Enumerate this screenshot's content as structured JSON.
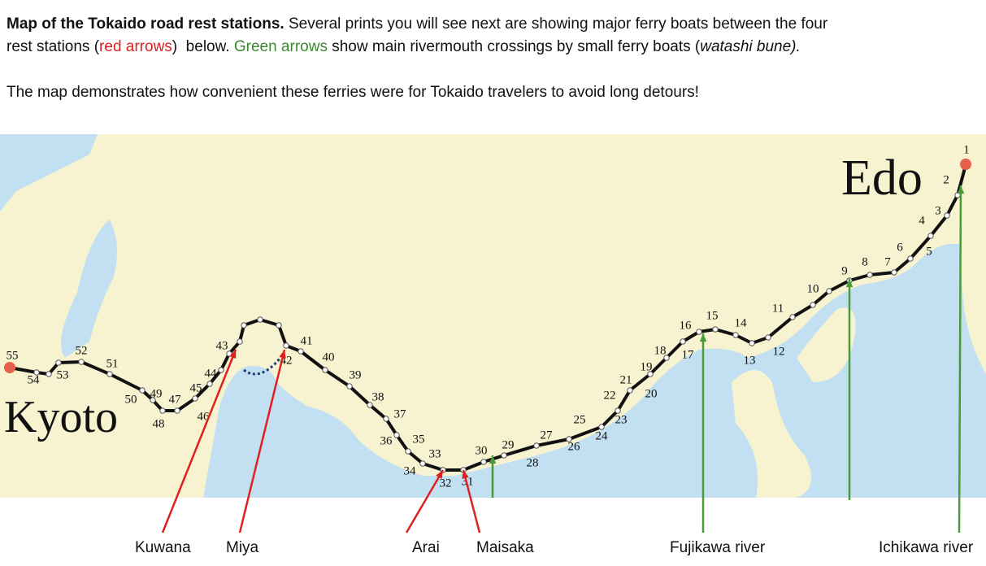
{
  "intro": {
    "title": "Map of the Tokaido road rest stations.",
    "text1": " Several prints you will see next are showing major ferry boats between the four",
    "text2": "rest stations (",
    "red": "red arrows",
    "text3": ")  below. ",
    "green": "Green arrows",
    "text4": " show main rivermouth crossings by small ferry boats (",
    "italic": "watashi bune)."
  },
  "note": "The map demonstrates how convenient these ferries were for Tokaido travelers to avoid long detours!",
  "map": {
    "edo": "Edo",
    "kyoto": "Kyoto",
    "stations": [
      "1",
      "2",
      "3",
      "4",
      "5",
      "6",
      "7",
      "8",
      "9",
      "10",
      "11",
      "12",
      "13",
      "14",
      "15",
      "16",
      "17",
      "18",
      "19",
      "20",
      "21",
      "22",
      "23",
      "24",
      "25",
      "26",
      "27",
      "28",
      "29",
      "30",
      "31",
      "32",
      "33",
      "34",
      "35",
      "36",
      "37",
      "38",
      "39",
      "40",
      "41",
      "42",
      "43",
      "44",
      "45",
      "46",
      "47",
      "48",
      "49",
      "50",
      "51",
      "52",
      "53",
      "54",
      "55"
    ]
  },
  "ferries": [
    "Kuwana",
    "Miya",
    "Arai",
    "Maisaka"
  ],
  "rivers": [
    "Fujikawa river",
    "Ichikawa river"
  ]
}
